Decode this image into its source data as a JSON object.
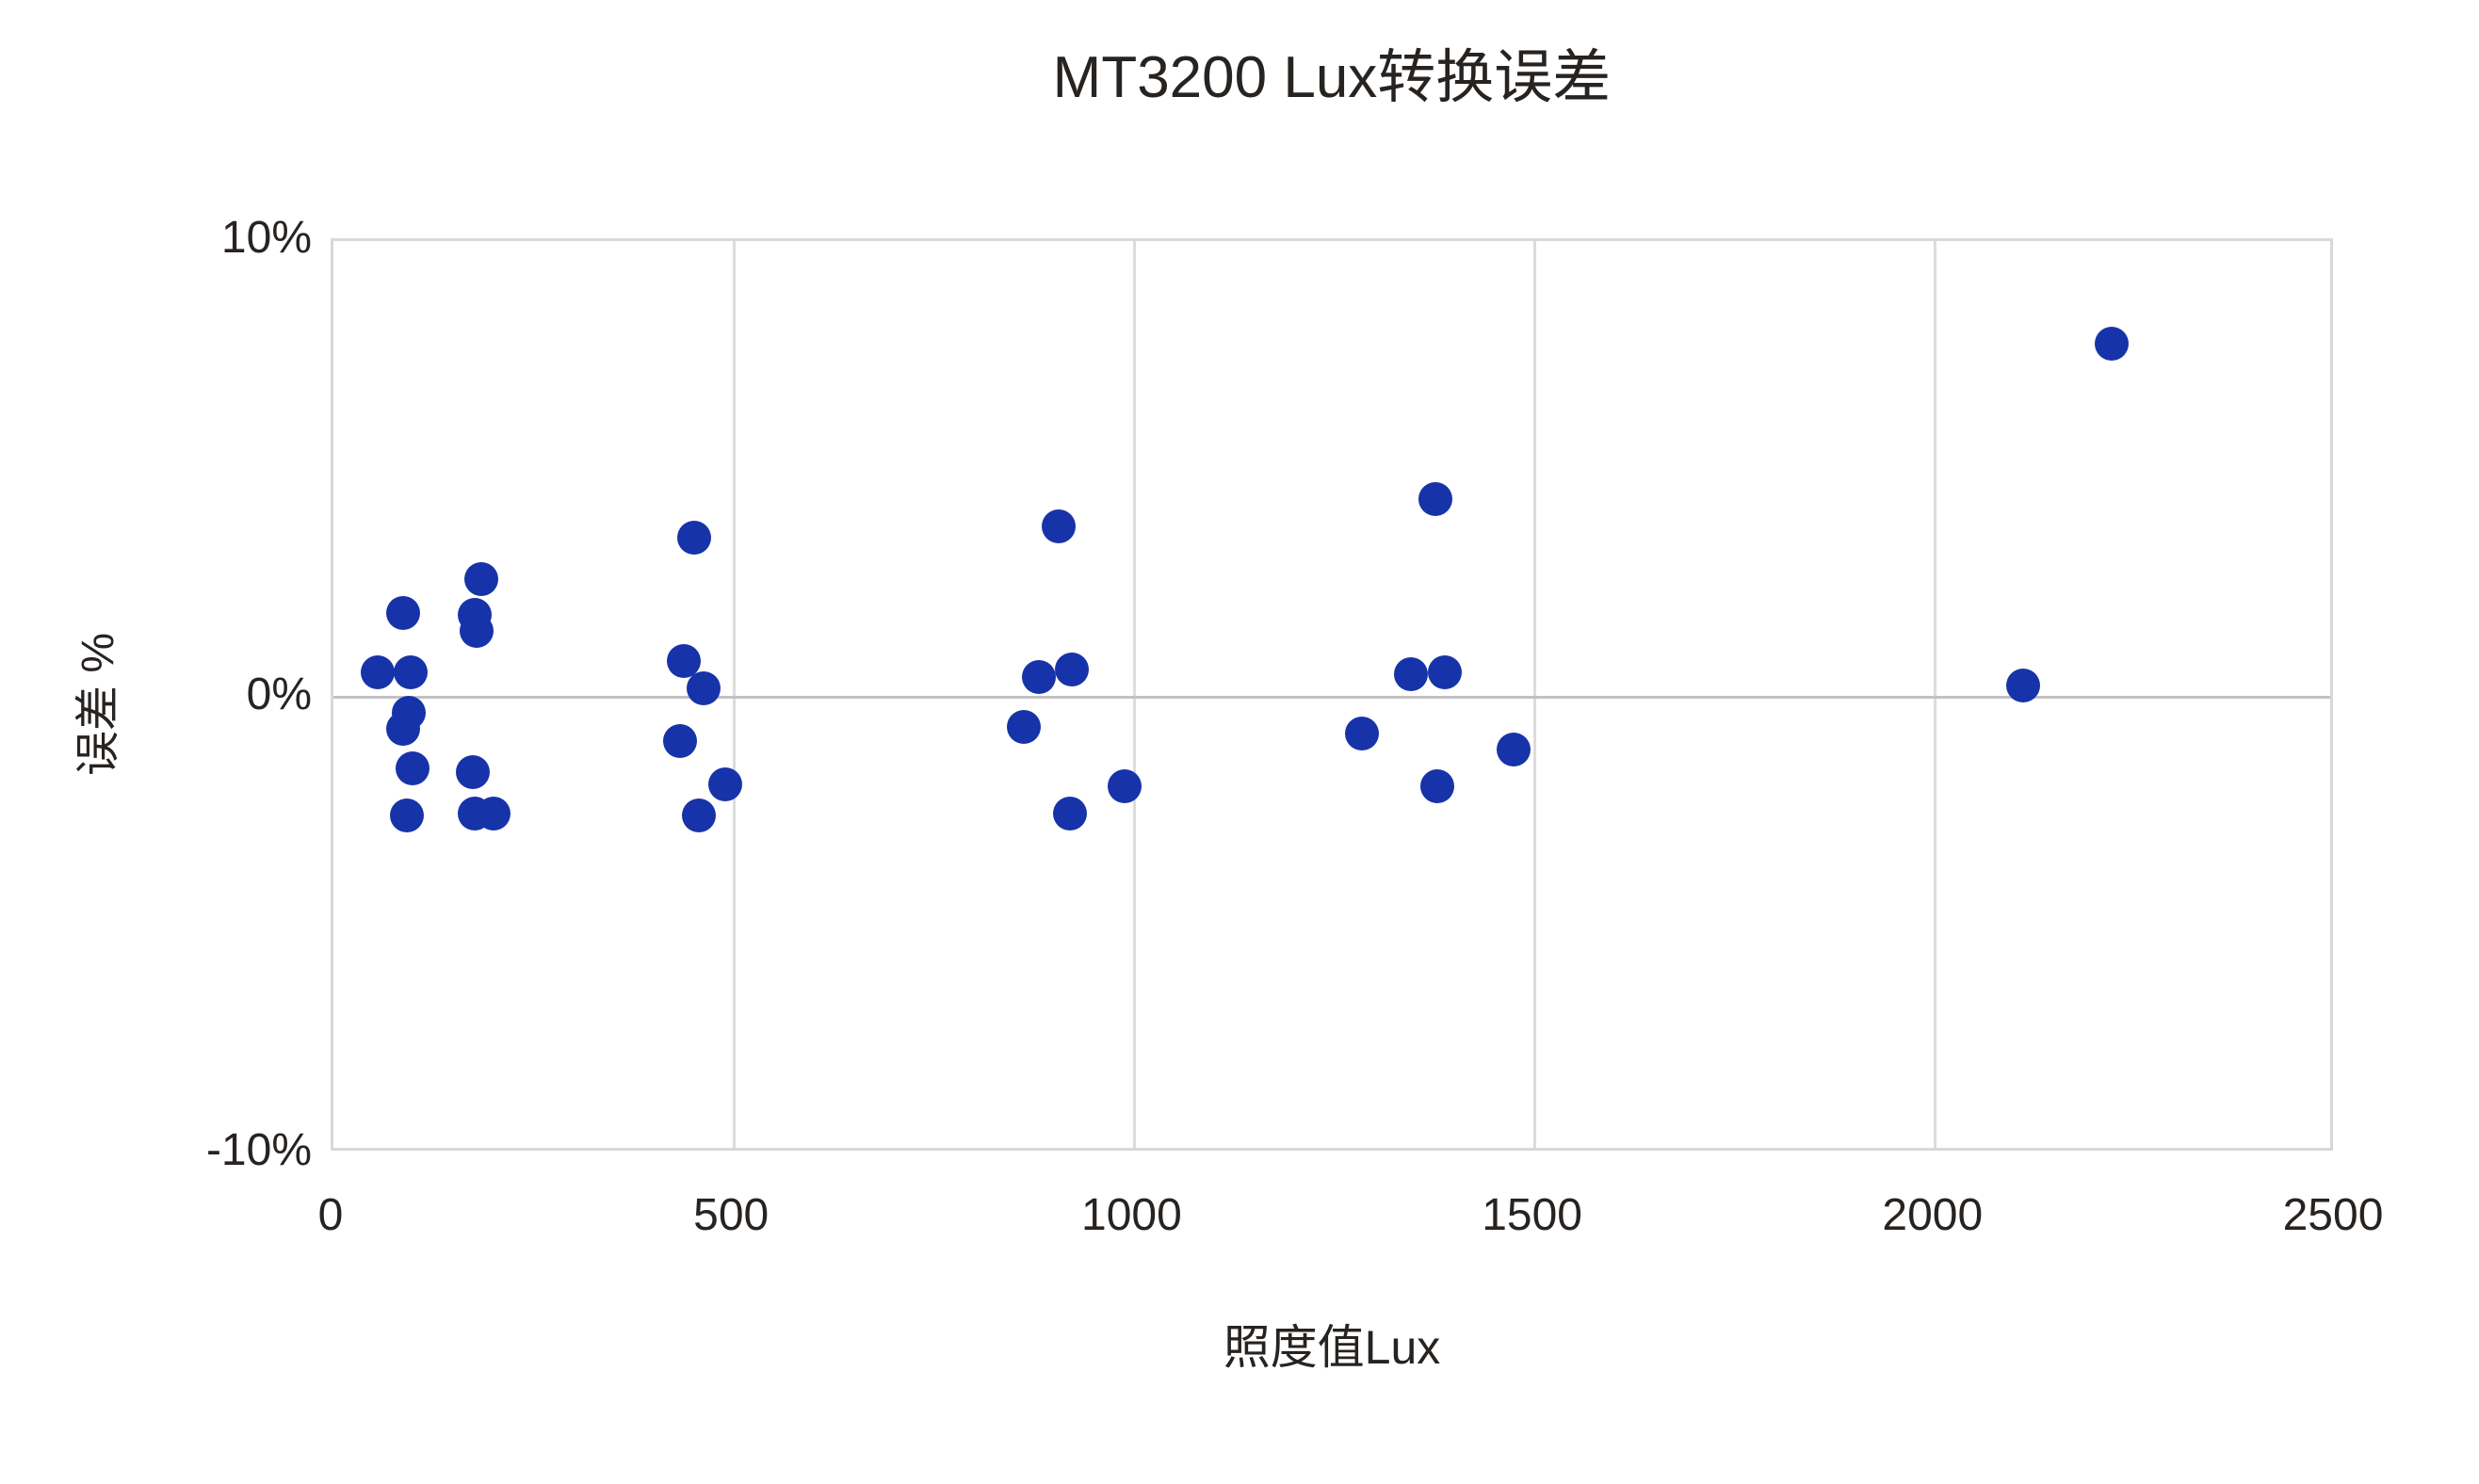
{
  "chart_data": {
    "type": "scatter",
    "title": "MT3200 Lux转换误差",
    "xlabel": "照度值Lux",
    "ylabel": "误差 %",
    "xlim": [
      0,
      2500
    ],
    "ylim": [
      -10,
      10
    ],
    "x_ticks": [
      {
        "label": "0",
        "value": 0
      },
      {
        "label": "500",
        "value": 500
      },
      {
        "label": "1000",
        "value": 1000
      },
      {
        "label": "1500",
        "value": 1500
      },
      {
        "label": "2000",
        "value": 2000
      },
      {
        "label": "2500",
        "value": 2500
      }
    ],
    "y_ticks": [
      {
        "label": "10%",
        "value": 10
      },
      {
        "label": "0%",
        "value": 0
      },
      {
        "label": "-10%",
        "value": -10
      }
    ],
    "grid": {
      "vertical_at_x_ticks": true,
      "horizontal_zero_line_only": true,
      "plot_border": true
    },
    "legend": "none",
    "series_name": "转换误差",
    "points": [
      {
        "x": 55,
        "y": 0.55
      },
      {
        "x": 87,
        "y": 1.85
      },
      {
        "x": 96,
        "y": 0.55
      },
      {
        "x": 94,
        "y": -0.35
      },
      {
        "x": 87,
        "y": -0.7
      },
      {
        "x": 99,
        "y": -1.55
      },
      {
        "x": 92,
        "y": -2.6
      },
      {
        "x": 185,
        "y": 2.6
      },
      {
        "x": 176,
        "y": 1.8
      },
      {
        "x": 179,
        "y": 1.45
      },
      {
        "x": 174,
        "y": -1.65
      },
      {
        "x": 176,
        "y": -2.55
      },
      {
        "x": 200,
        "y": -2.55
      },
      {
        "x": 450,
        "y": 3.5
      },
      {
        "x": 437,
        "y": 0.8
      },
      {
        "x": 462,
        "y": 0.2
      },
      {
        "x": 433,
        "y": -0.95
      },
      {
        "x": 489,
        "y": -1.9
      },
      {
        "x": 456,
        "y": -2.6
      },
      {
        "x": 905,
        "y": 3.75
      },
      {
        "x": 881,
        "y": 0.45
      },
      {
        "x": 922,
        "y": 0.6
      },
      {
        "x": 862,
        "y": -0.65
      },
      {
        "x": 988,
        "y": -1.95
      },
      {
        "x": 920,
        "y": -2.55
      },
      {
        "x": 1376,
        "y": 4.35
      },
      {
        "x": 1345,
        "y": 0.5
      },
      {
        "x": 1387,
        "y": 0.55
      },
      {
        "x": 1284,
        "y": -0.8
      },
      {
        "x": 1473,
        "y": -1.15
      },
      {
        "x": 1378,
        "y": -1.95
      },
      {
        "x": 2110,
        "y": 0.25
      },
      {
        "x": 2220,
        "y": 7.75
      }
    ],
    "colors": {
      "point": "#1733a9",
      "gridline": "#dcdcdc",
      "zero_line": "#c2c2c2",
      "plot_border": "#d8d8d8",
      "text": "#272320",
      "background": "#ffffff"
    }
  }
}
